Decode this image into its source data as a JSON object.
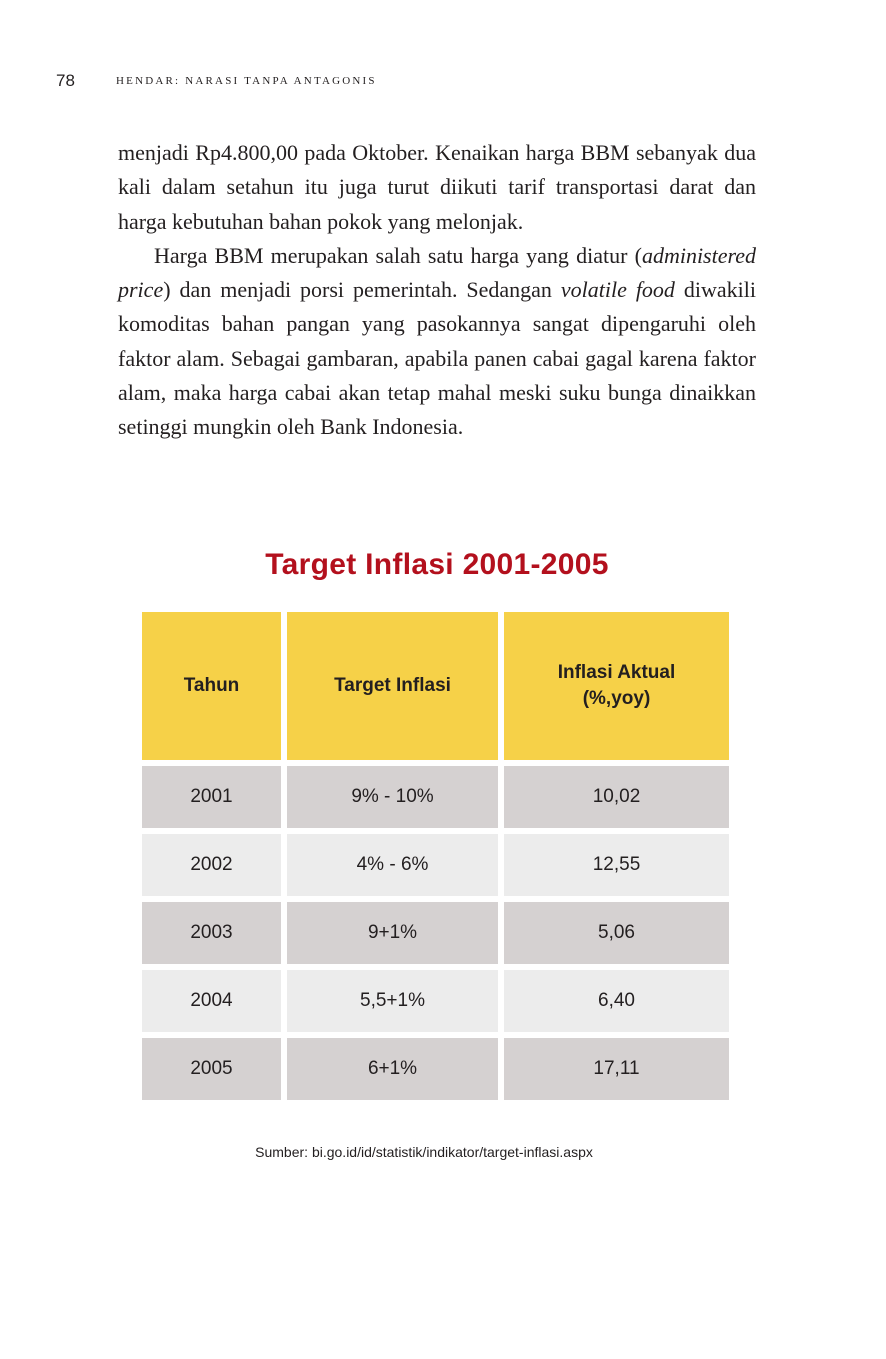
{
  "running_head": {
    "page_number": "78",
    "title": "HENDAR: NARASI TANPA ANTAGONIS"
  },
  "body": {
    "paragraph_1": "menjadi Rp4.800,00 pada Oktober. Kenaikan harga BBM sebanyak dua kali dalam setahun itu juga turut diikuti tarif transportasi darat dan harga kebutuhan bahan pokok yang melonjak.",
    "paragraph_2": {
      "part_1": "Harga BBM merupakan salah satu harga yang diatur (",
      "italic_1": "administered price",
      "part_2": ") dan menjadi porsi pemerintah. Sedangan ",
      "italic_2": "volatile food",
      "part_3": " diwakili komoditas bahan pangan yang pasokannya sangat dipengaruhi oleh faktor alam. Sebagai gambaran, apabila panen cabai gagal karena faktor alam, maka harga cabai akan tetap mahal meski suku bunga dinaikkan setinggi mungkin oleh Bank Indonesia."
    }
  },
  "table": {
    "title": "Target Inflasi 2001-2005",
    "headers": {
      "year": "Tahun",
      "target": "Target Inflasi",
      "actual_line_1": "Inflasi Aktual",
      "actual_line_2": "(%,yoy)"
    },
    "rows": [
      {
        "year": "2001",
        "target": "9% - 10%",
        "actual": "10,02"
      },
      {
        "year": "2002",
        "target": "4% - 6%",
        "actual": "12,55"
      },
      {
        "year": "2003",
        "target": "9+1%",
        "actual": "5,06"
      },
      {
        "year": "2004",
        "target": "5,5+1%",
        "actual": "6,40"
      },
      {
        "year": "2005",
        "target": "6+1%",
        "actual": "17,11"
      }
    ],
    "source": "Sumber: bi.go.id/id/statistik/indikator/target-inflasi.aspx"
  },
  "colors": {
    "title_red": "#b3101d",
    "header_yellow": "#f6d148",
    "row_dark": "#d5d1d1",
    "row_light": "#ececec"
  }
}
